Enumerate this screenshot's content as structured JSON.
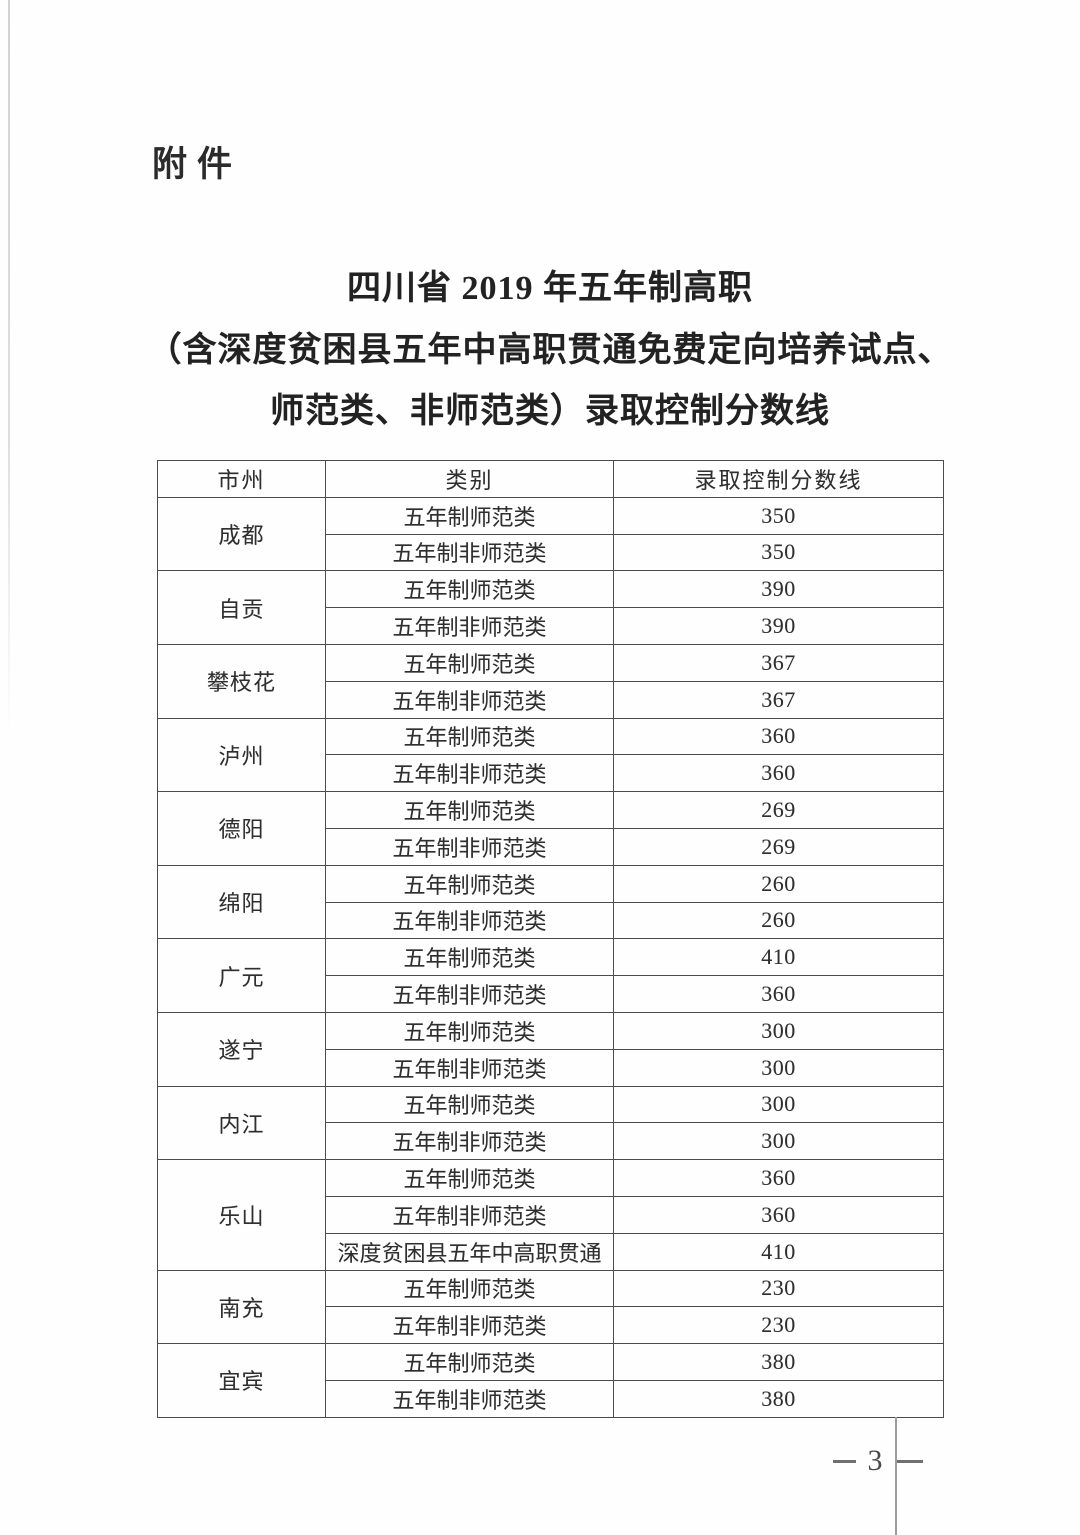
{
  "page": {
    "attachment_label": "附件",
    "footer_page_number": "3"
  },
  "title": {
    "line1": "四川省 2019 年五年制高职",
    "line2": "（含深度贫困县五年中高职贯通免费定向培养试点、",
    "line3": "师范类、非师范类）录取控制分数线"
  },
  "table": {
    "headers": [
      "市州",
      "类别",
      "录取控制分数线"
    ],
    "groups": [
      {
        "city": "成都",
        "rows": [
          {
            "category": "五年制师范类",
            "score": "350"
          },
          {
            "category": "五年制非师范类",
            "score": "350"
          }
        ]
      },
      {
        "city": "自贡",
        "rows": [
          {
            "category": "五年制师范类",
            "score": "390"
          },
          {
            "category": "五年制非师范类",
            "score": "390"
          }
        ]
      },
      {
        "city": "攀枝花",
        "rows": [
          {
            "category": "五年制师范类",
            "score": "367"
          },
          {
            "category": "五年制非师范类",
            "score": "367"
          }
        ]
      },
      {
        "city": "泸州",
        "rows": [
          {
            "category": "五年制师范类",
            "score": "360"
          },
          {
            "category": "五年制非师范类",
            "score": "360"
          }
        ]
      },
      {
        "city": "德阳",
        "rows": [
          {
            "category": "五年制师范类",
            "score": "269"
          },
          {
            "category": "五年制非师范类",
            "score": "269"
          }
        ]
      },
      {
        "city": "绵阳",
        "rows": [
          {
            "category": "五年制师范类",
            "score": "260"
          },
          {
            "category": "五年制非师范类",
            "score": "260"
          }
        ]
      },
      {
        "city": "广元",
        "rows": [
          {
            "category": "五年制师范类",
            "score": "410"
          },
          {
            "category": "五年制非师范类",
            "score": "360"
          }
        ]
      },
      {
        "city": "遂宁",
        "rows": [
          {
            "category": "五年制师范类",
            "score": "300"
          },
          {
            "category": "五年制非师范类",
            "score": "300"
          }
        ]
      },
      {
        "city": "内江",
        "rows": [
          {
            "category": "五年制师范类",
            "score": "300"
          },
          {
            "category": "五年制非师范类",
            "score": "300"
          }
        ]
      },
      {
        "city": "乐山",
        "rows": [
          {
            "category": "五年制师范类",
            "score": "360"
          },
          {
            "category": "五年制非师范类",
            "score": "360"
          },
          {
            "category": "深度贫困县五年中高职贯通",
            "score": "410"
          }
        ]
      },
      {
        "city": "南充",
        "rows": [
          {
            "category": "五年制师范类",
            "score": "230"
          },
          {
            "category": "五年制非师范类",
            "score": "230"
          }
        ]
      },
      {
        "city": "宜宾",
        "rows": [
          {
            "category": "五年制师范类",
            "score": "380"
          },
          {
            "category": "五年制非师范类",
            "score": "380"
          }
        ]
      }
    ]
  }
}
